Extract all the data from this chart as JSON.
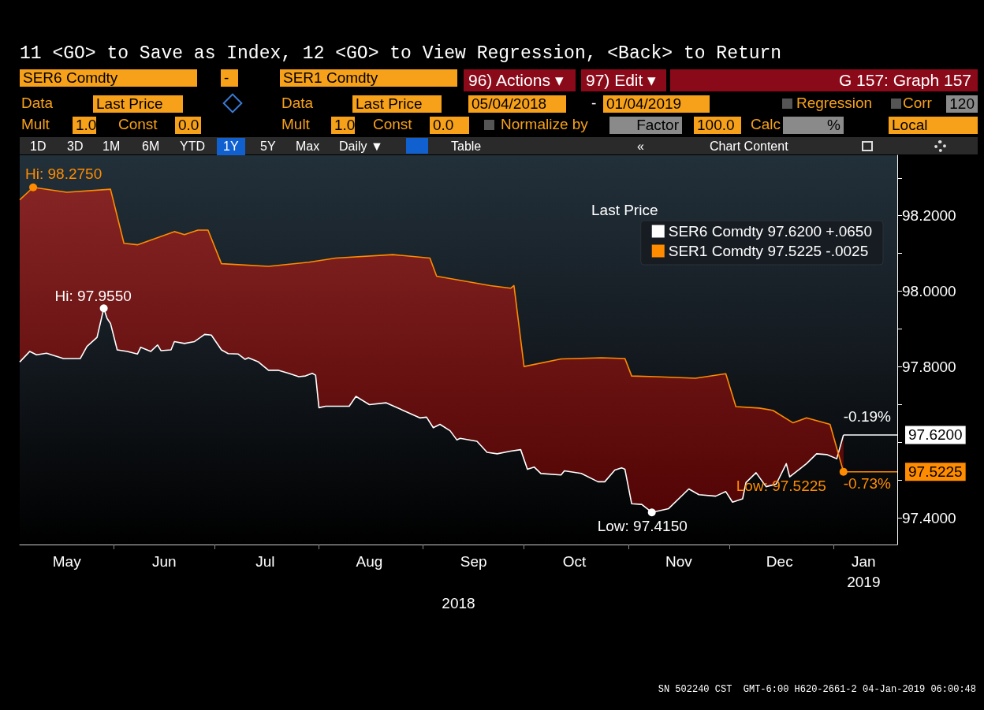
{
  "chart_data": {
    "type": "line",
    "title": "11 <GO> to Save as Index, 12 <GO> to View Regression, <Back> to Return",
    "subtitle": "G 157: Graph 157",
    "legend_title": "Last Price",
    "legend": "top right",
    "xlabel": "2018",
    "marker": "none",
    "xlim": [
      "2018-05-04",
      "2019-01-20"
    ],
    "xticks": [
      {
        "value": "2018-05-18",
        "label": "May"
      },
      {
        "value": "2018-06-01",
        "label": null
      },
      {
        "value": "2018-06-16",
        "label": "Jun"
      },
      {
        "value": "2018-07-01",
        "label": null
      },
      {
        "value": "2018-07-16",
        "label": "Jul"
      },
      {
        "value": "2018-08-01",
        "label": null
      },
      {
        "value": "2018-08-16",
        "label": "Aug"
      },
      {
        "value": "2018-09-01",
        "label": null
      },
      {
        "value": "2018-09-16",
        "label": "Sep"
      },
      {
        "value": "2018-10-01",
        "label": null
      },
      {
        "value": "2018-10-16",
        "label": "Oct"
      },
      {
        "value": "2018-11-01",
        "label": null
      },
      {
        "value": "2018-11-16",
        "label": "Nov"
      },
      {
        "value": "2018-12-01",
        "label": null
      },
      {
        "value": "2018-12-16",
        "label": "Dec"
      },
      {
        "value": "2019-01-01",
        "label": null
      },
      {
        "value": "2019-01-10",
        "label": "Jan\n2019"
      }
    ],
    "ylim": [
      97.33,
      98.36
    ],
    "yticks": [
      {
        "value": 97.4,
        "label": "97.4000"
      },
      {
        "value": 97.5,
        "label": null
      },
      {
        "value": 97.6,
        "label": null
      },
      {
        "value": 97.7,
        "label": null
      },
      {
        "value": 97.8,
        "label": "97.8000"
      },
      {
        "value": 97.9,
        "label": null
      },
      {
        "value": 98.0,
        "label": "98.0000"
      },
      {
        "value": 98.1,
        "label": null
      },
      {
        "value": 98.2,
        "label": "98.2000"
      },
      {
        "value": 98.3,
        "label": null
      }
    ],
    "series": [
      {
        "name": "SER6 Comdty 97.6200 +.0650",
        "color": "#ffffff",
        "x": [
          "2018-05-04",
          "2018-05-07",
          "2018-05-09",
          "2018-05-12",
          "2018-05-17",
          "2018-05-22",
          "2018-05-24",
          "2018-05-27",
          "2018-05-29",
          "2018-05-30",
          "2018-05-31",
          "2018-06-02",
          "2018-06-05",
          "2018-06-08",
          "2018-06-09",
          "2018-06-12",
          "2018-06-14",
          "2018-06-15",
          "2018-06-18",
          "2018-06-19",
          "2018-06-22",
          "2018-06-25",
          "2018-06-28",
          "2018-06-30",
          "2018-07-03",
          "2018-07-05",
          "2018-07-08",
          "2018-07-10",
          "2018-07-11",
          "2018-07-14",
          "2018-07-17",
          "2018-07-20",
          "2018-07-23",
          "2018-07-26",
          "2018-07-28",
          "2018-07-30",
          "2018-07-31",
          "2018-08-01",
          "2018-08-03",
          "2018-08-10",
          "2018-08-12",
          "2018-08-16",
          "2018-08-21",
          "2018-08-26",
          "2018-08-31",
          "2018-09-02",
          "2018-09-04",
          "2018-09-06",
          "2018-09-09",
          "2018-09-11",
          "2018-09-12",
          "2018-09-17",
          "2018-09-20",
          "2018-09-23",
          "2018-09-27",
          "2018-09-30",
          "2018-10-02",
          "2018-10-04",
          "2018-10-06",
          "2018-10-12",
          "2018-10-13",
          "2018-10-18",
          "2018-10-23",
          "2018-10-25",
          "2018-10-28",
          "2018-10-30",
          "2018-10-31",
          "2018-11-02",
          "2018-11-05",
          "2018-11-08",
          "2018-11-13",
          "2018-11-19",
          "2018-11-22",
          "2018-11-27",
          "2018-11-30",
          "2018-12-02",
          "2018-12-05",
          "2018-12-06",
          "2018-12-09",
          "2018-12-12",
          "2018-12-15",
          "2018-12-18",
          "2018-12-19",
          "2018-12-24",
          "2018-12-27",
          "2018-12-30",
          "2019-01-02",
          "2019-01-04"
        ],
        "values": [
          97.813,
          97.841,
          97.832,
          97.836,
          97.822,
          97.822,
          97.854,
          97.878,
          97.955,
          97.928,
          97.915,
          97.845,
          97.841,
          97.834,
          97.852,
          97.841,
          97.858,
          97.843,
          97.845,
          97.867,
          97.862,
          97.867,
          97.886,
          97.884,
          97.845,
          97.835,
          97.834,
          97.82,
          97.824,
          97.813,
          97.791,
          97.791,
          97.783,
          97.774,
          97.776,
          97.783,
          97.778,
          97.692,
          97.696,
          97.696,
          97.722,
          97.7,
          97.705,
          97.685,
          97.665,
          97.667,
          97.639,
          97.648,
          97.631,
          97.607,
          97.611,
          97.603,
          97.574,
          97.57,
          97.577,
          97.581,
          97.529,
          97.535,
          97.518,
          97.514,
          97.525,
          97.518,
          97.496,
          97.496,
          97.527,
          97.533,
          97.529,
          97.438,
          97.436,
          97.415,
          97.425,
          97.477,
          97.462,
          97.458,
          97.47,
          97.442,
          97.451,
          97.494,
          97.52,
          97.483,
          97.49,
          97.544,
          97.509,
          97.544,
          97.57,
          97.568,
          97.557,
          97.62
        ]
      },
      {
        "name": "SER1 Comdty 97.5225 -.0025",
        "color": "#ff8c00",
        "x": [
          "2018-05-04",
          "2018-05-08",
          "2018-05-18",
          "2018-05-31",
          "2018-06-04",
          "2018-06-08",
          "2018-06-19",
          "2018-06-22",
          "2018-06-26",
          "2018-06-29",
          "2018-07-03",
          "2018-07-17",
          "2018-07-29",
          "2018-08-06",
          "2018-08-23",
          "2018-09-03",
          "2018-09-05",
          "2018-09-21",
          "2018-09-27",
          "2018-09-28",
          "2018-10-01",
          "2018-10-12",
          "2018-10-24",
          "2018-10-31",
          "2018-11-02",
          "2018-11-09",
          "2018-11-21",
          "2018-11-30",
          "2018-12-03",
          "2018-12-10",
          "2018-12-14",
          "2018-12-20",
          "2018-12-24",
          "2018-12-31",
          "2019-01-04"
        ],
        "values": [
          98.242,
          98.275,
          98.262,
          98.27,
          98.127,
          98.123,
          98.158,
          98.15,
          98.162,
          98.162,
          98.073,
          98.066,
          98.077,
          98.088,
          98.097,
          98.088,
          98.04,
          98.015,
          98.008,
          98.015,
          97.801,
          97.821,
          97.824,
          97.822,
          97.776,
          97.774,
          97.77,
          97.782,
          97.695,
          97.691,
          97.685,
          97.652,
          97.665,
          97.648,
          97.5225
        ]
      }
    ],
    "annotations": [
      "SER6 Comdty",
      "-",
      "SER1 Comdty",
      "96) Actions ▾",
      "97) Edit ▾",
      "Data",
      "Last Price",
      "Data",
      "Last Price",
      "05/04/2018",
      "-",
      "01/04/2019",
      "Regression",
      "Corr",
      "120",
      "Mult",
      "1.0",
      "Const",
      "0.0",
      "Mult",
      "1.0",
      "Const",
      "0.0",
      "Normalize by",
      "Factor",
      "100.0",
      "Calc",
      "%",
      "Local",
      "1D",
      "3D",
      "1M",
      "6M",
      "YTD",
      "1Y",
      "5Y",
      "Max",
      "Daily ▼",
      "Table",
      "«",
      "Chart Content",
      {
        "text": "Hi: 98.2750",
        "x": "2018-05-08",
        "y": 98.275
      },
      {
        "text": "Hi: 97.9550",
        "x": "2018-05-29",
        "y": 97.955
      },
      {
        "text": "Low: 97.4150",
        "x": "2018-11-08",
        "y": 97.415
      },
      {
        "text": "Low: 97.5225",
        "x": "2019-01-04",
        "y": 97.5225
      },
      {
        "text": "-0.19%",
        "x": "2019-01-04",
        "y": 97.62
      },
      {
        "text": "-0.73%",
        "x": "2019-01-04",
        "y": 97.5225
      },
      {
        "text": "97.6200",
        "x": "2019-01-04",
        "y": 97.62
      },
      {
        "text": "97.5225",
        "x": "2019-01-04",
        "y": 97.5225
      },
      "SN 502240 CST  GMT-6:00 H620-2661-2 04-Jan-2019 06:00:48"
    ]
  }
}
